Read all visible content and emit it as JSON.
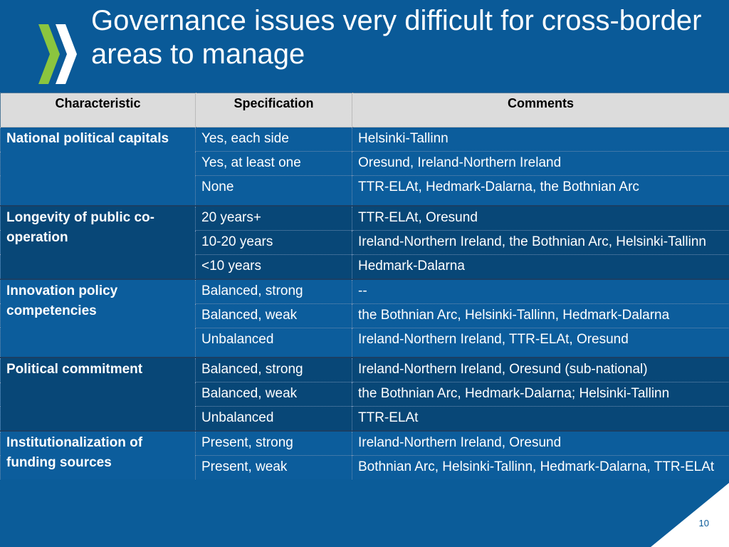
{
  "title": "Governance issues very difficult for cross-border areas to manage",
  "colors": {
    "background": "#0b5c99",
    "header_row": "#dcdcdc",
    "logo_green": "#8bc53f"
  },
  "logo_icon": "double-chevron-logo-icon",
  "table": {
    "headers": [
      "Characteristic",
      "Specification",
      "Comments"
    ],
    "groups": [
      {
        "characteristic": "National political capitals",
        "rows": [
          {
            "spec": "Yes, each side",
            "comment": "Helsinki-Tallinn"
          },
          {
            "spec": "Yes, at least one",
            "comment": "Oresund, Ireland-Northern Ireland"
          },
          {
            "spec": "None",
            "comment": "TTR-ELAt, Hedmark-Dalarna, the Bothnian Arc"
          }
        ]
      },
      {
        "characteristic": "Longevity of public co-operation",
        "rows": [
          {
            "spec": "20 years+",
            "comment": "TTR-ELAt, Oresund"
          },
          {
            "spec": "10-20 years",
            "comment": "Ireland-Northern Ireland, the Bothnian Arc, Helsinki-Tallinn"
          },
          {
            "spec": "<10 years",
            "comment": "Hedmark-Dalarna"
          }
        ]
      },
      {
        "characteristic": "Innovation policy competencies",
        "rows": [
          {
            "spec": "Balanced, strong",
            "comment": "--"
          },
          {
            "spec": "Balanced, weak",
            "comment": "the Bothnian Arc, Helsinki-Tallinn, Hedmark-Dalarna"
          },
          {
            "spec": "Unbalanced",
            "comment": "Ireland-Northern Ireland, TTR-ELAt, Oresund"
          }
        ]
      },
      {
        "characteristic": "Political commitment",
        "rows": [
          {
            "spec": "Balanced, strong",
            "comment": "Ireland-Northern Ireland, Oresund (sub-national)"
          },
          {
            "spec": "Balanced, weak",
            "comment": "the Bothnian Arc, Hedmark-Dalarna; Helsinki-Tallinn"
          },
          {
            "spec": "Unbalanced",
            "comment": "TTR-ELAt"
          }
        ]
      },
      {
        "characteristic": "Institutionalization of funding sources",
        "rows": [
          {
            "spec": "Present, strong",
            "comment": "Ireland-Northern Ireland, Oresund"
          },
          {
            "spec": "Present, weak",
            "comment": "Bothnian Arc, Helsinki-Tallinn, Hedmark-Dalarna, TTR-ELAt"
          }
        ]
      }
    ]
  },
  "page_number": "10"
}
